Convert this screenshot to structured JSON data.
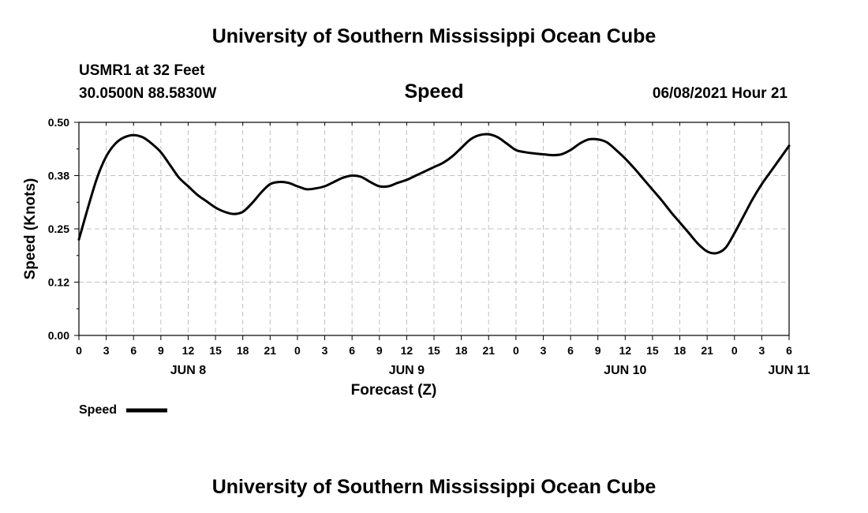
{
  "header": {
    "title": "University of Southern Mississippi Ocean Cube",
    "station": "USMR1 at 32 Feet",
    "coords": "30.0500N  88.5830W",
    "variable": "Speed",
    "datetime": "06/08/2021 Hour 21"
  },
  "footer": {
    "title": "University of Southern Mississippi Ocean Cube"
  },
  "legend": {
    "label": "Speed"
  },
  "colors": {
    "line": "#000000",
    "grid": "#c0c0c0",
    "background": "#ffffff"
  },
  "chart_data": {
    "type": "line",
    "title": "Speed",
    "xlabel": "Forecast (Z)",
    "ylabel": "Speed (Knots)",
    "ylim": [
      0,
      0.5
    ],
    "xlim": [
      0,
      78
    ],
    "x_unit": "hours from 2021-06-08 00Z",
    "y_ticks": [
      "0.00",
      "0.12",
      "0.25",
      "0.38",
      "0.50"
    ],
    "x_ticks": [
      "0",
      "3",
      "6",
      "9",
      "12",
      "15",
      "18",
      "21",
      "0",
      "3",
      "6",
      "9",
      "12",
      "15",
      "18",
      "21",
      "0",
      "3",
      "6",
      "9",
      "12",
      "15",
      "18",
      "21",
      "0",
      "3",
      "6"
    ],
    "day_labels": [
      {
        "label": "JUN 8",
        "hour": 12
      },
      {
        "label": "JUN 9",
        "hour": 36
      },
      {
        "label": "JUN 10",
        "hour": 60
      },
      {
        "label": "JUN 11",
        "hour": 78
      }
    ],
    "grid": true,
    "legend_position": "bottom-left",
    "series": [
      {
        "name": "Speed",
        "x": [
          0,
          1,
          2,
          3,
          4,
          5,
          6,
          7,
          8,
          9,
          10,
          11,
          12,
          13,
          14,
          15,
          16,
          17,
          18,
          19,
          20,
          21,
          22,
          23,
          24,
          25,
          26,
          27,
          28,
          29,
          30,
          31,
          32,
          33,
          34,
          35,
          36,
          37,
          38,
          39,
          40,
          41,
          42,
          43,
          44,
          45,
          46,
          47,
          48,
          49,
          50,
          51,
          52,
          53,
          54,
          55,
          56,
          57,
          58,
          59,
          60,
          61,
          62,
          63,
          64,
          65,
          66,
          67,
          68,
          69,
          70,
          71,
          72,
          73,
          74,
          75,
          76,
          77,
          78
        ],
        "values": [
          0.225,
          0.3,
          0.37,
          0.42,
          0.45,
          0.465,
          0.47,
          0.465,
          0.45,
          0.43,
          0.4,
          0.37,
          0.35,
          0.33,
          0.315,
          0.3,
          0.29,
          0.285,
          0.29,
          0.31,
          0.335,
          0.355,
          0.36,
          0.358,
          0.35,
          0.343,
          0.345,
          0.35,
          0.36,
          0.37,
          0.375,
          0.372,
          0.36,
          0.35,
          0.35,
          0.358,
          0.365,
          0.375,
          0.385,
          0.395,
          0.405,
          0.42,
          0.44,
          0.46,
          0.47,
          0.472,
          0.465,
          0.45,
          0.435,
          0.43,
          0.427,
          0.425,
          0.423,
          0.425,
          0.435,
          0.45,
          0.46,
          0.46,
          0.453,
          0.435,
          0.415,
          0.392,
          0.367,
          0.342,
          0.317,
          0.29,
          0.265,
          0.24,
          0.215,
          0.197,
          0.193,
          0.205,
          0.24,
          0.28,
          0.32,
          0.355,
          0.385,
          0.415,
          0.445
        ]
      }
    ]
  }
}
